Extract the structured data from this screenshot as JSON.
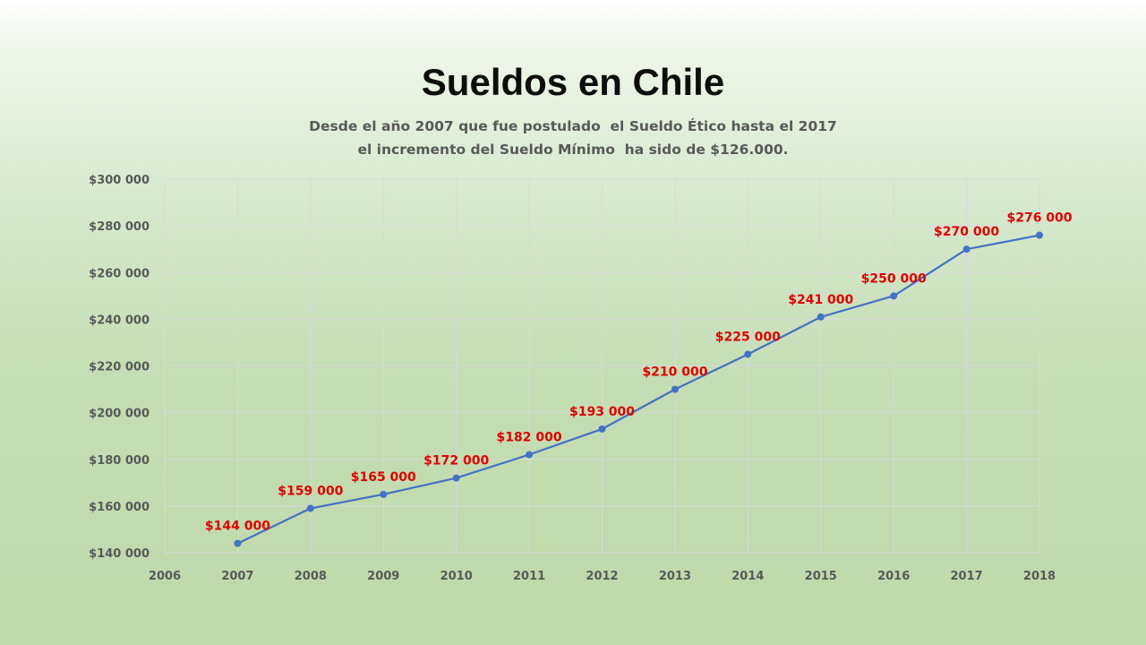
{
  "slide": {
    "title": "Sueldos en Chile",
    "subtitle_line1": "Desde el año 2007 que fue postulado  el Sueldo Ético hasta el 2017",
    "subtitle_line2": "el incremento del Sueldo Mínimo  ha sido de $126.000."
  },
  "chart_data": {
    "type": "line",
    "title": "",
    "xlabel": "",
    "ylabel": "",
    "xlim": [
      2006,
      2018
    ],
    "ylim": [
      140000,
      300000
    ],
    "x_ticks": [
      "2006",
      "2007",
      "2008",
      "2009",
      "2010",
      "2011",
      "2012",
      "2013",
      "2014",
      "2015",
      "2016",
      "2017",
      "2018"
    ],
    "y_ticks": [
      "$140 000",
      "$160 000",
      "$180 000",
      "$200 000",
      "$220 000",
      "$240 000",
      "$260 000",
      "$280 000",
      "$300 000"
    ],
    "grid": true,
    "legend": "none",
    "series": [
      {
        "x": [
          2007,
          2008,
          2009,
          2010,
          2011,
          2012,
          2013,
          2014,
          2015,
          2016,
          2017,
          2018
        ],
        "y": [
          144000,
          159000,
          165000,
          172000,
          182000,
          193000,
          210000,
          225000,
          241000,
          250000,
          270000,
          276000
        ],
        "labels": [
          "$144 000",
          "$159 000",
          "$165 000",
          "$172 000",
          "$182 000",
          "$193 000",
          "$210 000",
          "$225 000",
          "$241 000",
          "$250 000",
          "$270 000",
          "$276 000"
        ],
        "color": "#4472c4"
      }
    ],
    "label_color": "#e00000",
    "grid_color": "#d9d9d9",
    "tick_color": "#595959"
  }
}
